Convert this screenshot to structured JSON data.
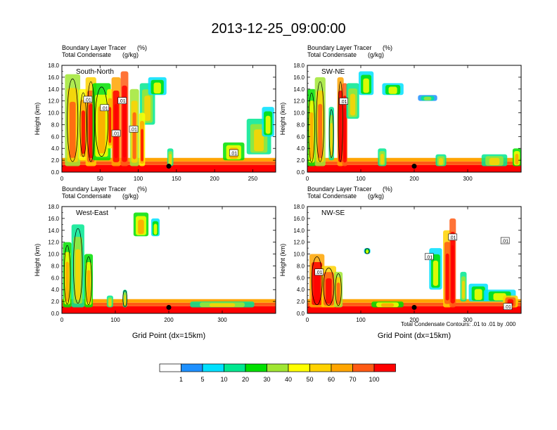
{
  "figure": {
    "title": "2013-12-25_09:00:00",
    "contour_note": "Total Condensate Contours: .01 to .01 by .000"
  },
  "chart_data": [
    {
      "type": "heatmap",
      "panel_label": "South-North",
      "title_line1": "Boundary Layer Tracer",
      "unit_line1": "(%)",
      "title_line2": "Total Condensate",
      "unit_line2": "(g/kg)",
      "xlabel": "",
      "ylabel": "Height (km)",
      "xlim": [
        0,
        280
      ],
      "ylim": [
        0,
        18
      ],
      "xticks": [
        0,
        50,
        100,
        150,
        200,
        250
      ],
      "yticks": [
        "0.0",
        "2.0",
        "4.0",
        "6.0",
        "8.0",
        "10.0",
        "12.0",
        "14.0",
        "16.0",
        "18.0"
      ],
      "contour_labels": [
        {
          "text": ".01",
          "x": 34,
          "y": 12.2
        },
        {
          "text": ".01",
          "x": 56,
          "y": 10.8
        },
        {
          "text": ".01",
          "x": 79,
          "y": 12.0
        },
        {
          "text": ".01",
          "x": 71,
          "y": 6.5
        },
        {
          "text": ".01",
          "x": 94,
          "y": 7.2
        },
        {
          "text": ".01",
          "x": 225,
          "y": 3.2
        }
      ],
      "marker": {
        "x": 140,
        "y": 1.0
      }
    },
    {
      "type": "heatmap",
      "panel_label": "SW-NE",
      "title_line1": "Boundary Layer Tracer",
      "unit_line1": "(%)",
      "title_line2": "Total Condensate",
      "unit_line2": "(g/kg)",
      "xlabel": "",
      "ylabel": "Height (km)",
      "xlim": [
        0,
        400
      ],
      "ylim": [
        0,
        18
      ],
      "xticks": [
        0,
        100,
        200,
        300
      ],
      "yticks": [
        "0.0",
        "2.0",
        "4.0",
        "6.0",
        "8.0",
        "10.0",
        "12.0",
        "14.0",
        "16.0",
        "18.0"
      ],
      "contour_labels": [
        {
          "text": ".01",
          "x": 68,
          "y": 11.9
        }
      ],
      "marker": {
        "x": 200,
        "y": 1.0
      }
    },
    {
      "type": "heatmap",
      "panel_label": "West-East",
      "title_line1": "Boundary Layer Tracer",
      "unit_line1": "(%)",
      "title_line2": "Total Condensate",
      "unit_line2": "(g/kg)",
      "xlabel": "Grid Point (dx=15km)",
      "ylabel": "Height (km)",
      "xlim": [
        0,
        400
      ],
      "ylim": [
        0,
        18
      ],
      "xticks": [
        0,
        100,
        200,
        300
      ],
      "yticks": [
        "0.0",
        "2.0",
        "4.0",
        "6.0",
        "8.0",
        "10.0",
        "12.0",
        "14.0",
        "16.0",
        "18.0"
      ],
      "contour_labels": [],
      "marker": {
        "x": 200,
        "y": 1.0
      }
    },
    {
      "type": "heatmap",
      "panel_label": "NW-SE",
      "title_line1": "Boundary Layer Tracer",
      "unit_line1": "(%)",
      "title_line2": "Total Condensate",
      "unit_line2": "(g/kg)",
      "xlabel": "Grid Point (dx=15km)",
      "ylabel": "Height (km)",
      "xlim": [
        0,
        400
      ],
      "ylim": [
        0,
        18
      ],
      "xticks": [
        0,
        100,
        200,
        300
      ],
      "yticks": [
        "0.0",
        "2.0",
        "4.0",
        "6.0",
        "8.0",
        "10.0",
        "12.0",
        "14.0",
        "16.0",
        "18.0"
      ],
      "contour_labels": [
        {
          "text": ".01",
          "x": 272,
          "y": 12.8
        },
        {
          "text": ".01",
          "x": 228,
          "y": 9.5
        },
        {
          "text": ".01",
          "x": 370,
          "y": 12.2
        },
        {
          "text": ".01",
          "x": 22,
          "y": 6.9
        },
        {
          "text": ".01",
          "x": 375,
          "y": 1.1
        }
      ],
      "marker": {
        "x": 200,
        "y": 1.0
      }
    }
  ],
  "colorbar": {
    "levels": [
      "1",
      "5",
      "10",
      "20",
      "30",
      "40",
      "50",
      "60",
      "70",
      "100"
    ],
    "colors": [
      "#ffffff",
      "#1e90ff",
      "#00e0ff",
      "#00e890",
      "#00e000",
      "#a0e632",
      "#ffff00",
      "#ffd200",
      "#ffa500",
      "#ff5a14",
      "#ff0000"
    ]
  }
}
